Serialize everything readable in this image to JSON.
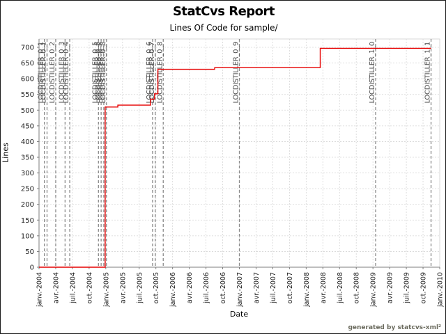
{
  "page": {
    "title": "StatCvs Report",
    "subtitle": "Lines Of Code for sample/",
    "credit": "generated by statcvs-xml²"
  },
  "chart_data": {
    "type": "line",
    "variant": "step",
    "title": "StatCvs Report",
    "subtitle": "Lines Of Code for sample/",
    "xlabel": "Date",
    "ylabel": "Lines",
    "grid": true,
    "legend": "none",
    "colors": {
      "line": "#e60000",
      "gridline": "#d6d6d6",
      "tag_line": "#8a8a8a",
      "axis": "#7d7d7d",
      "tick_text": "#1a1a1a",
      "tag_text": "#4a4a4a"
    },
    "x_axis": {
      "min_year": 2004.0,
      "max_year": 2010.0,
      "tick_step_years": 0.25,
      "tick_labels": [
        "janv.-2004",
        "avr.-2004",
        "juil.-2004",
        "oct.-2004",
        "janv.-2005",
        "avr.-2005",
        "juil.-2005",
        "oct.-2005",
        "janv.-2006",
        "avr.-2006",
        "juil.-2006",
        "oct.-2006",
        "janv.-2007",
        "avr.-2007",
        "juil.-2007",
        "oct.-2007",
        "janv.-2008",
        "avr.-2008",
        "juil.-2008",
        "oct.-2008",
        "janv.-2009",
        "avr.-2009",
        "juil.-2009",
        "oct.-2009",
        "janv.-2010"
      ]
    },
    "y_axis": {
      "min": 0,
      "max": 700,
      "tick_interval": 50,
      "tick_labels": [
        "0",
        "50",
        "100",
        "150",
        "200",
        "250",
        "300",
        "350",
        "400",
        "450",
        "500",
        "550",
        "600",
        "650",
        "700"
      ]
    },
    "series": [
      {
        "name": "Lines Of Code",
        "step_points": [
          [
            2004.0,
            0
          ],
          [
            2004.99,
            0
          ],
          [
            2004.99,
            510
          ],
          [
            2005.18,
            510
          ],
          [
            2005.18,
            516
          ],
          [
            2005.67,
            516
          ],
          [
            2005.67,
            535
          ],
          [
            2005.73,
            535
          ],
          [
            2005.73,
            552
          ],
          [
            2005.78,
            552
          ],
          [
            2005.78,
            630
          ],
          [
            2006.63,
            630
          ],
          [
            2006.63,
            635
          ],
          [
            2008.21,
            635
          ],
          [
            2008.21,
            697
          ],
          [
            2009.87,
            697
          ]
        ]
      }
    ],
    "tag_lines": [
      {
        "label": "LOCDISTILLER_0_1",
        "year": 2004.08
      },
      {
        "label": "LOCDISTILLER_0_1",
        "year": 2004.12
      },
      {
        "label": "LOCDISTILLER_0_2",
        "year": 2004.25
      },
      {
        "label": "LOCDISTILLER_0_3",
        "year": 2004.39
      },
      {
        "label": "LOCDISTILLER_0_4",
        "year": 2004.46
      },
      {
        "label": "LOCDISTILLER_0_5",
        "year": 2004.89
      },
      {
        "label": "LOCDISTILLER_0_5",
        "year": 2004.93
      },
      {
        "label": "LOCDISTILLER_0_5",
        "year": 2004.97
      },
      {
        "label": "LOCDISTILLER_0_5",
        "year": 2005.01
      },
      {
        "label": "LOCDISTILLER_0_6",
        "year": 2005.7
      },
      {
        "label": "LOCDISTILLER_0_7",
        "year": 2005.74
      },
      {
        "label": "LOCDISTILLER_0_8",
        "year": 2005.86
      },
      {
        "label": "LOCDISTILLER_0_9",
        "year": 2007.0
      },
      {
        "label": "LOCDISTILLER_1_0",
        "year": 2009.04
      },
      {
        "label": "LOCDISTILLER_1_1",
        "year": 2009.87
      }
    ]
  }
}
